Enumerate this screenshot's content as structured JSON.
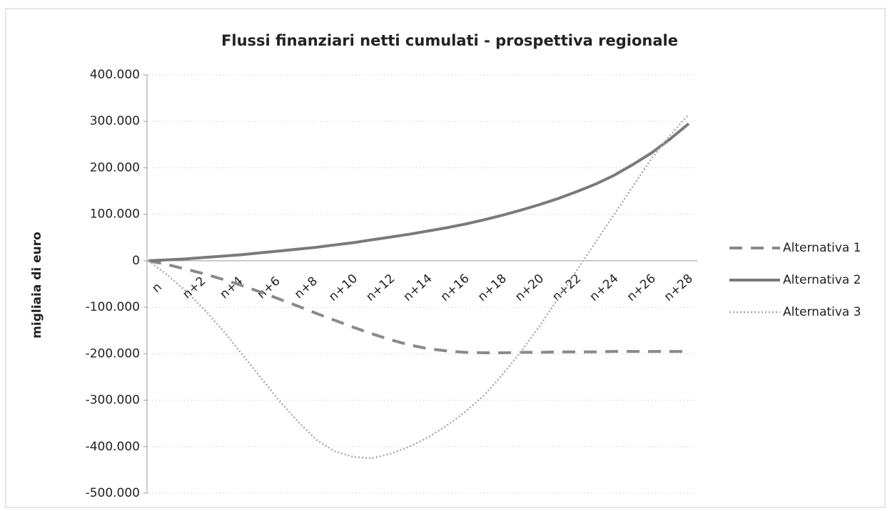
{
  "chart_data": {
    "type": "line",
    "title": "Flussi finanziari netti cumulati - prospettiva regionale",
    "y_label": "migliaia di euro",
    "categories": [
      "n",
      null,
      "n+2",
      null,
      "n+4",
      null,
      "n+6",
      null,
      "n+8",
      null,
      "n+10",
      null,
      "n+12",
      null,
      "n+14",
      null,
      "n+16",
      null,
      "n+18",
      null,
      "n+20",
      null,
      "n+22",
      null,
      "n+24",
      null,
      "n+26",
      null,
      "n+28",
      null
    ],
    "series": [
      {
        "name": "Alternativa 1",
        "color": "#8a8a8a",
        "style": "dashed",
        "values": [
          0,
          -8000,
          -18000,
          -28000,
          -40000,
          -53000,
          -67000,
          -82000,
          -97000,
          -113000,
          -128000,
          -143000,
          -157000,
          -170000,
          -181000,
          -189000,
          -194000,
          -197000,
          -198000,
          -198000,
          -197000,
          -197000,
          -196000,
          -196000,
          -196000,
          -195000,
          -195000,
          -195000,
          -195000,
          -195000
        ]
      },
      {
        "name": "Alternativa 2",
        "color": "#7a7a7a",
        "style": "solid",
        "values": [
          0,
          2000,
          4000,
          7000,
          10000,
          13000,
          17000,
          21000,
          25000,
          29000,
          34000,
          39000,
          45000,
          51000,
          57000,
          64000,
          71000,
          79000,
          88000,
          98000,
          109000,
          121000,
          134000,
          149000,
          165000,
          184000,
          207000,
          232000,
          262000,
          295000
        ]
      },
      {
        "name": "Alternativa 3",
        "color": "#a8a8a8",
        "style": "dotted",
        "values": [
          0,
          -30000,
          -65000,
          -105000,
          -150000,
          -200000,
          -250000,
          -300000,
          -345000,
          -385000,
          -410000,
          -422000,
          -425000,
          -415000,
          -400000,
          -380000,
          -355000,
          -325000,
          -290000,
          -245000,
          -195000,
          -140000,
          -80000,
          -20000,
          40000,
          100000,
          160000,
          220000,
          270000,
          315000
        ]
      }
    ],
    "ylim": [
      -500000,
      400000
    ],
    "yticks": [
      {
        "value": -500000,
        "label": "-500.000"
      },
      {
        "value": -400000,
        "label": "-400.000"
      },
      {
        "value": -300000,
        "label": "-300.000"
      },
      {
        "value": -200000,
        "label": "-200.000"
      },
      {
        "value": -100000,
        "label": "-100.000"
      },
      0,
      {
        "value": 100000,
        "label": "100.000"
      },
      {
        "value": 200000,
        "label": "200.000"
      },
      {
        "value": 300000,
        "label": "300.000"
      },
      {
        "value": 400000,
        "label": "400.000"
      }
    ],
    "grid": true,
    "legend": "right"
  }
}
